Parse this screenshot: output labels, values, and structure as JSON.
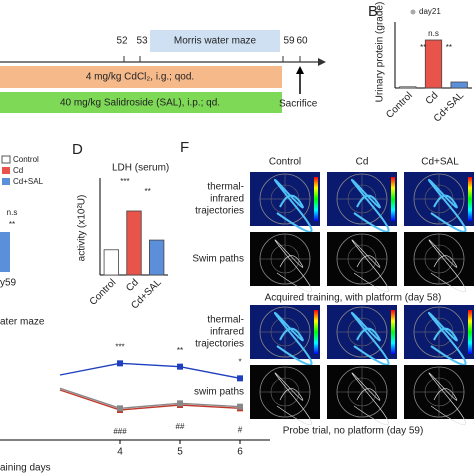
{
  "timeline": {
    "ticks": [
      "52",
      "53",
      "59",
      "60"
    ],
    "phase": "Morris water maze",
    "treatment_1": "4 mg/kg CdCl₂, i.g.; qod.",
    "treatment_2": "40 mg/kg Salidroside (SAL), i.p.; qd.",
    "end": "Sacrifice"
  },
  "panel_c": {
    "legend": [
      "Control",
      "Cd",
      "Cd+SAL"
    ],
    "annotations": [
      "n.s",
      "**"
    ],
    "xlabel": "y59"
  },
  "panel_f": {
    "label": "F",
    "columns": [
      "Control",
      "Cd",
      "Cd+SAL"
    ],
    "blocks": [
      {
        "row_1": [
          "thermal-",
          "infrared",
          "trajectories"
        ],
        "row_2": "Swim paths",
        "caption": "Acquired training, with platform (day 58)"
      },
      {
        "row_1": [
          "thermal-",
          "infrared",
          "trajectories"
        ],
        "row_2": "swim paths",
        "caption": "Probe trial, no platform (day 59)"
      }
    ]
  },
  "chart_data": [
    {
      "type": "bar",
      "label": "B",
      "legend": "day21",
      "ylabel": "Urinary protein (grade)",
      "categories": [
        "Control",
        "Cd",
        "Cd+SAL"
      ],
      "values": [
        0.1,
        4,
        0.5
      ],
      "colors": [
        "#ffffff",
        "#e8534a",
        "#5b8fd9"
      ],
      "ylim": [
        0,
        5.5
      ],
      "annotations": [
        "n.s",
        "**",
        "**"
      ]
    },
    {
      "type": "bar",
      "label": "D",
      "title": "LDH (serum)",
      "ylabel": "activity (x10²U)",
      "categories": [
        "Control",
        "Cd",
        "Cd+SAL"
      ],
      "values": [
        1.3,
        3.3,
        1.8
      ],
      "colors": [
        "#ffffff",
        "#e8534a",
        "#5b8fd9"
      ],
      "ylim": [
        0,
        5
      ],
      "annotations": [
        "***",
        "**"
      ]
    },
    {
      "type": "line",
      "title": "ater maze",
      "xlabel": "aining days",
      "x": [
        3,
        4,
        5,
        6
      ],
      "xlim": [
        2,
        6.5
      ],
      "xticks": [
        4,
        5,
        6
      ],
      "ylim": [
        0,
        60
      ],
      "series": [
        {
          "color": "#1f3fbf",
          "values": [
            39,
            46,
            44,
            37
          ]
        },
        {
          "color": "#c0392b",
          "values": [
            30,
            18,
            21,
            19
          ]
        },
        {
          "color": "#888888",
          "values": [
            31,
            19,
            22,
            20
          ]
        }
      ],
      "annotations": [
        "***",
        "**",
        "*",
        "###",
        "##",
        "#"
      ]
    }
  ]
}
